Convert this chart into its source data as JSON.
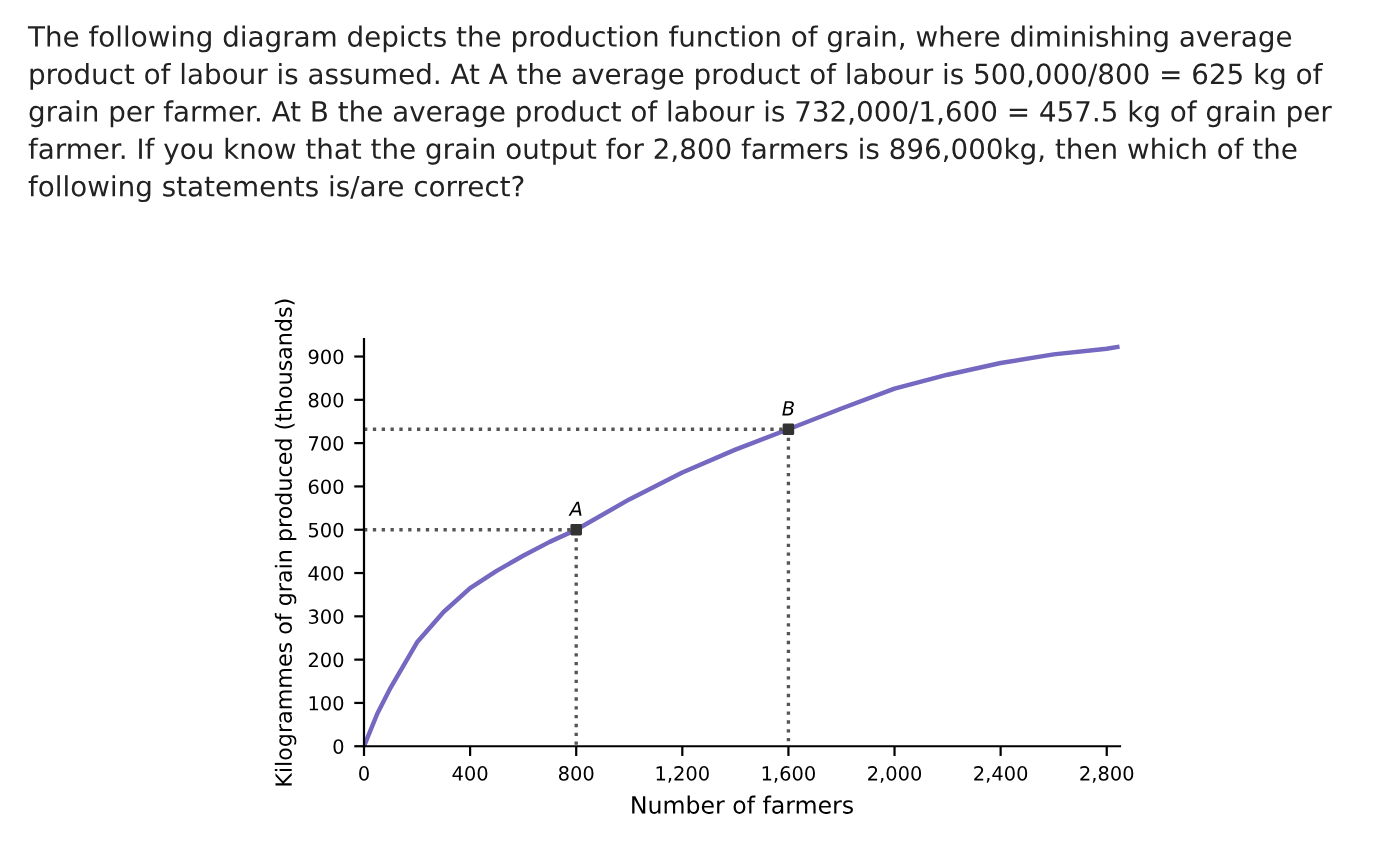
{
  "chart_data": {
    "type": "line",
    "title": "The following diagram depicts the production function of grain, where diminishing average product of labour is assumed. At A the average product of labour is 500,000/800 = 625 kg of grain per farmer. At B the average product of labour is 732,000/1,600 = 457.5 kg of grain per farmer. If you know that the grain output for 2,800 farmers is 896,000kg, then which of the following statements is/are correct?",
    "xlabel": "Number of farmers",
    "ylabel": "Kilogrammes of grain produced (thousands)",
    "xlim": [
      0,
      2850
    ],
    "ylim": [
      0,
      940
    ],
    "xticks": [
      0,
      400,
      800,
      {
        "value": 1200,
        "label": "1,200"
      },
      {
        "value": 1600,
        "label": "1,600"
      },
      {
        "value": 2000,
        "label": "2,000"
      },
      {
        "value": 2400,
        "label": "2,400"
      },
      {
        "value": 2800,
        "label": "2,800"
      }
    ],
    "yticks": [
      0,
      100,
      200,
      300,
      400,
      500,
      600,
      700,
      800,
      900
    ],
    "grid": false,
    "legend": false,
    "series": [
      {
        "color": "#7468c0",
        "x": [
          0,
          50,
          100,
          200,
          300,
          400,
          500,
          600,
          700,
          800,
          1000,
          1200,
          1400,
          1600,
          1800,
          2000,
          2200,
          2400,
          2600,
          2800,
          2840
        ],
        "values": [
          0,
          75,
          135,
          240,
          310,
          365,
          405,
          440,
          472,
          500,
          570,
          632,
          685,
          732,
          780,
          826,
          858,
          885,
          905,
          918,
          922
        ],
        "marker": "none",
        "line_style": "solid"
      },
      {
        "color": "#555555",
        "x": [
          0,
          800,
          800
        ],
        "values": [
          500,
          500,
          0
        ],
        "marker": "none",
        "line_style": "dotted"
      },
      {
        "color": "#555555",
        "x": [
          0,
          1600,
          1600
        ],
        "values": [
          732,
          732,
          0
        ],
        "marker": "none",
        "line_style": "dotted"
      },
      {
        "type": "scatter",
        "color": "#333333",
        "x": [
          800,
          1600
        ],
        "values": [
          500,
          732
        ],
        "marker": "square"
      }
    ],
    "annotations": [
      {
        "text": "A",
        "x": 800,
        "y": 500
      },
      {
        "text": "B",
        "x": 1600,
        "y": 732
      }
    ]
  }
}
